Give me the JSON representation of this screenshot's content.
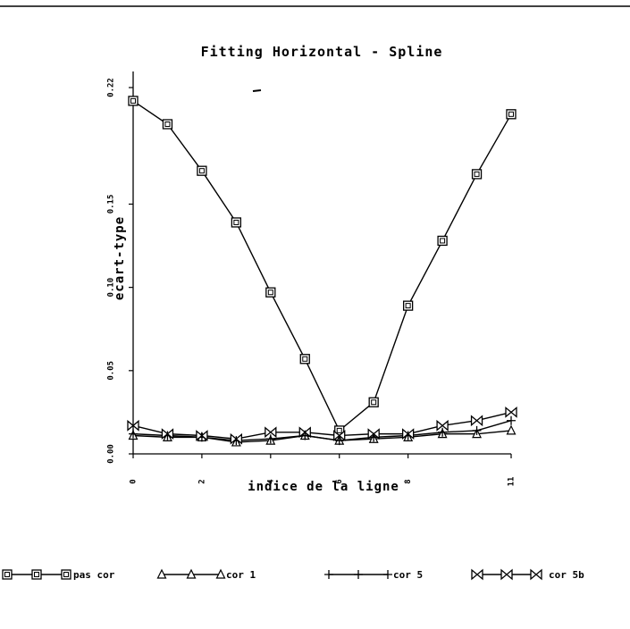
{
  "chart_data": {
    "type": "line",
    "title": "Fitting Horizontal - Spline",
    "xlabel": "indice de la ligne",
    "ylabel": "ecart-type",
    "xlim": [
      0,
      11
    ],
    "ylim": [
      0,
      0.22
    ],
    "x_ticks": [
      0,
      2,
      4,
      6,
      8,
      11
    ],
    "x_tick_labels": [
      "0",
      "2",
      "4",
      "6",
      "8",
      "11"
    ],
    "y_ticks": [
      0,
      0.05,
      0.1,
      0.15,
      0.22
    ],
    "y_tick_labels": [
      "0.00",
      "0.05",
      "0.10",
      "0.15",
      "0.22"
    ],
    "grid": false,
    "legend_position": "bottom",
    "x": [
      0,
      1,
      2,
      3,
      4,
      5,
      6,
      7,
      8,
      9,
      10,
      11
    ],
    "series": [
      {
        "name": "pas cor",
        "marker": "square",
        "values": [
          0.212,
          0.198,
          0.17,
          0.139,
          0.097,
          0.057,
          0.014,
          0.031,
          0.089,
          0.128,
          0.168,
          0.204
        ]
      },
      {
        "name": "cor 1",
        "marker": "triangle",
        "values": [
          0.011,
          0.01,
          0.01,
          0.007,
          0.008,
          0.011,
          0.008,
          0.009,
          0.01,
          0.012,
          0.012,
          0.014
        ]
      },
      {
        "name": "cor 5",
        "marker": "plus",
        "values": [
          0.012,
          0.011,
          0.01,
          0.008,
          0.009,
          0.011,
          0.008,
          0.01,
          0.011,
          0.013,
          0.014,
          0.02
        ]
      },
      {
        "name": "cor 5b",
        "marker": "bowtie",
        "values": [
          0.017,
          0.012,
          0.011,
          0.009,
          0.013,
          0.013,
          0.011,
          0.012,
          0.012,
          0.017,
          0.02,
          0.025
        ]
      }
    ]
  }
}
